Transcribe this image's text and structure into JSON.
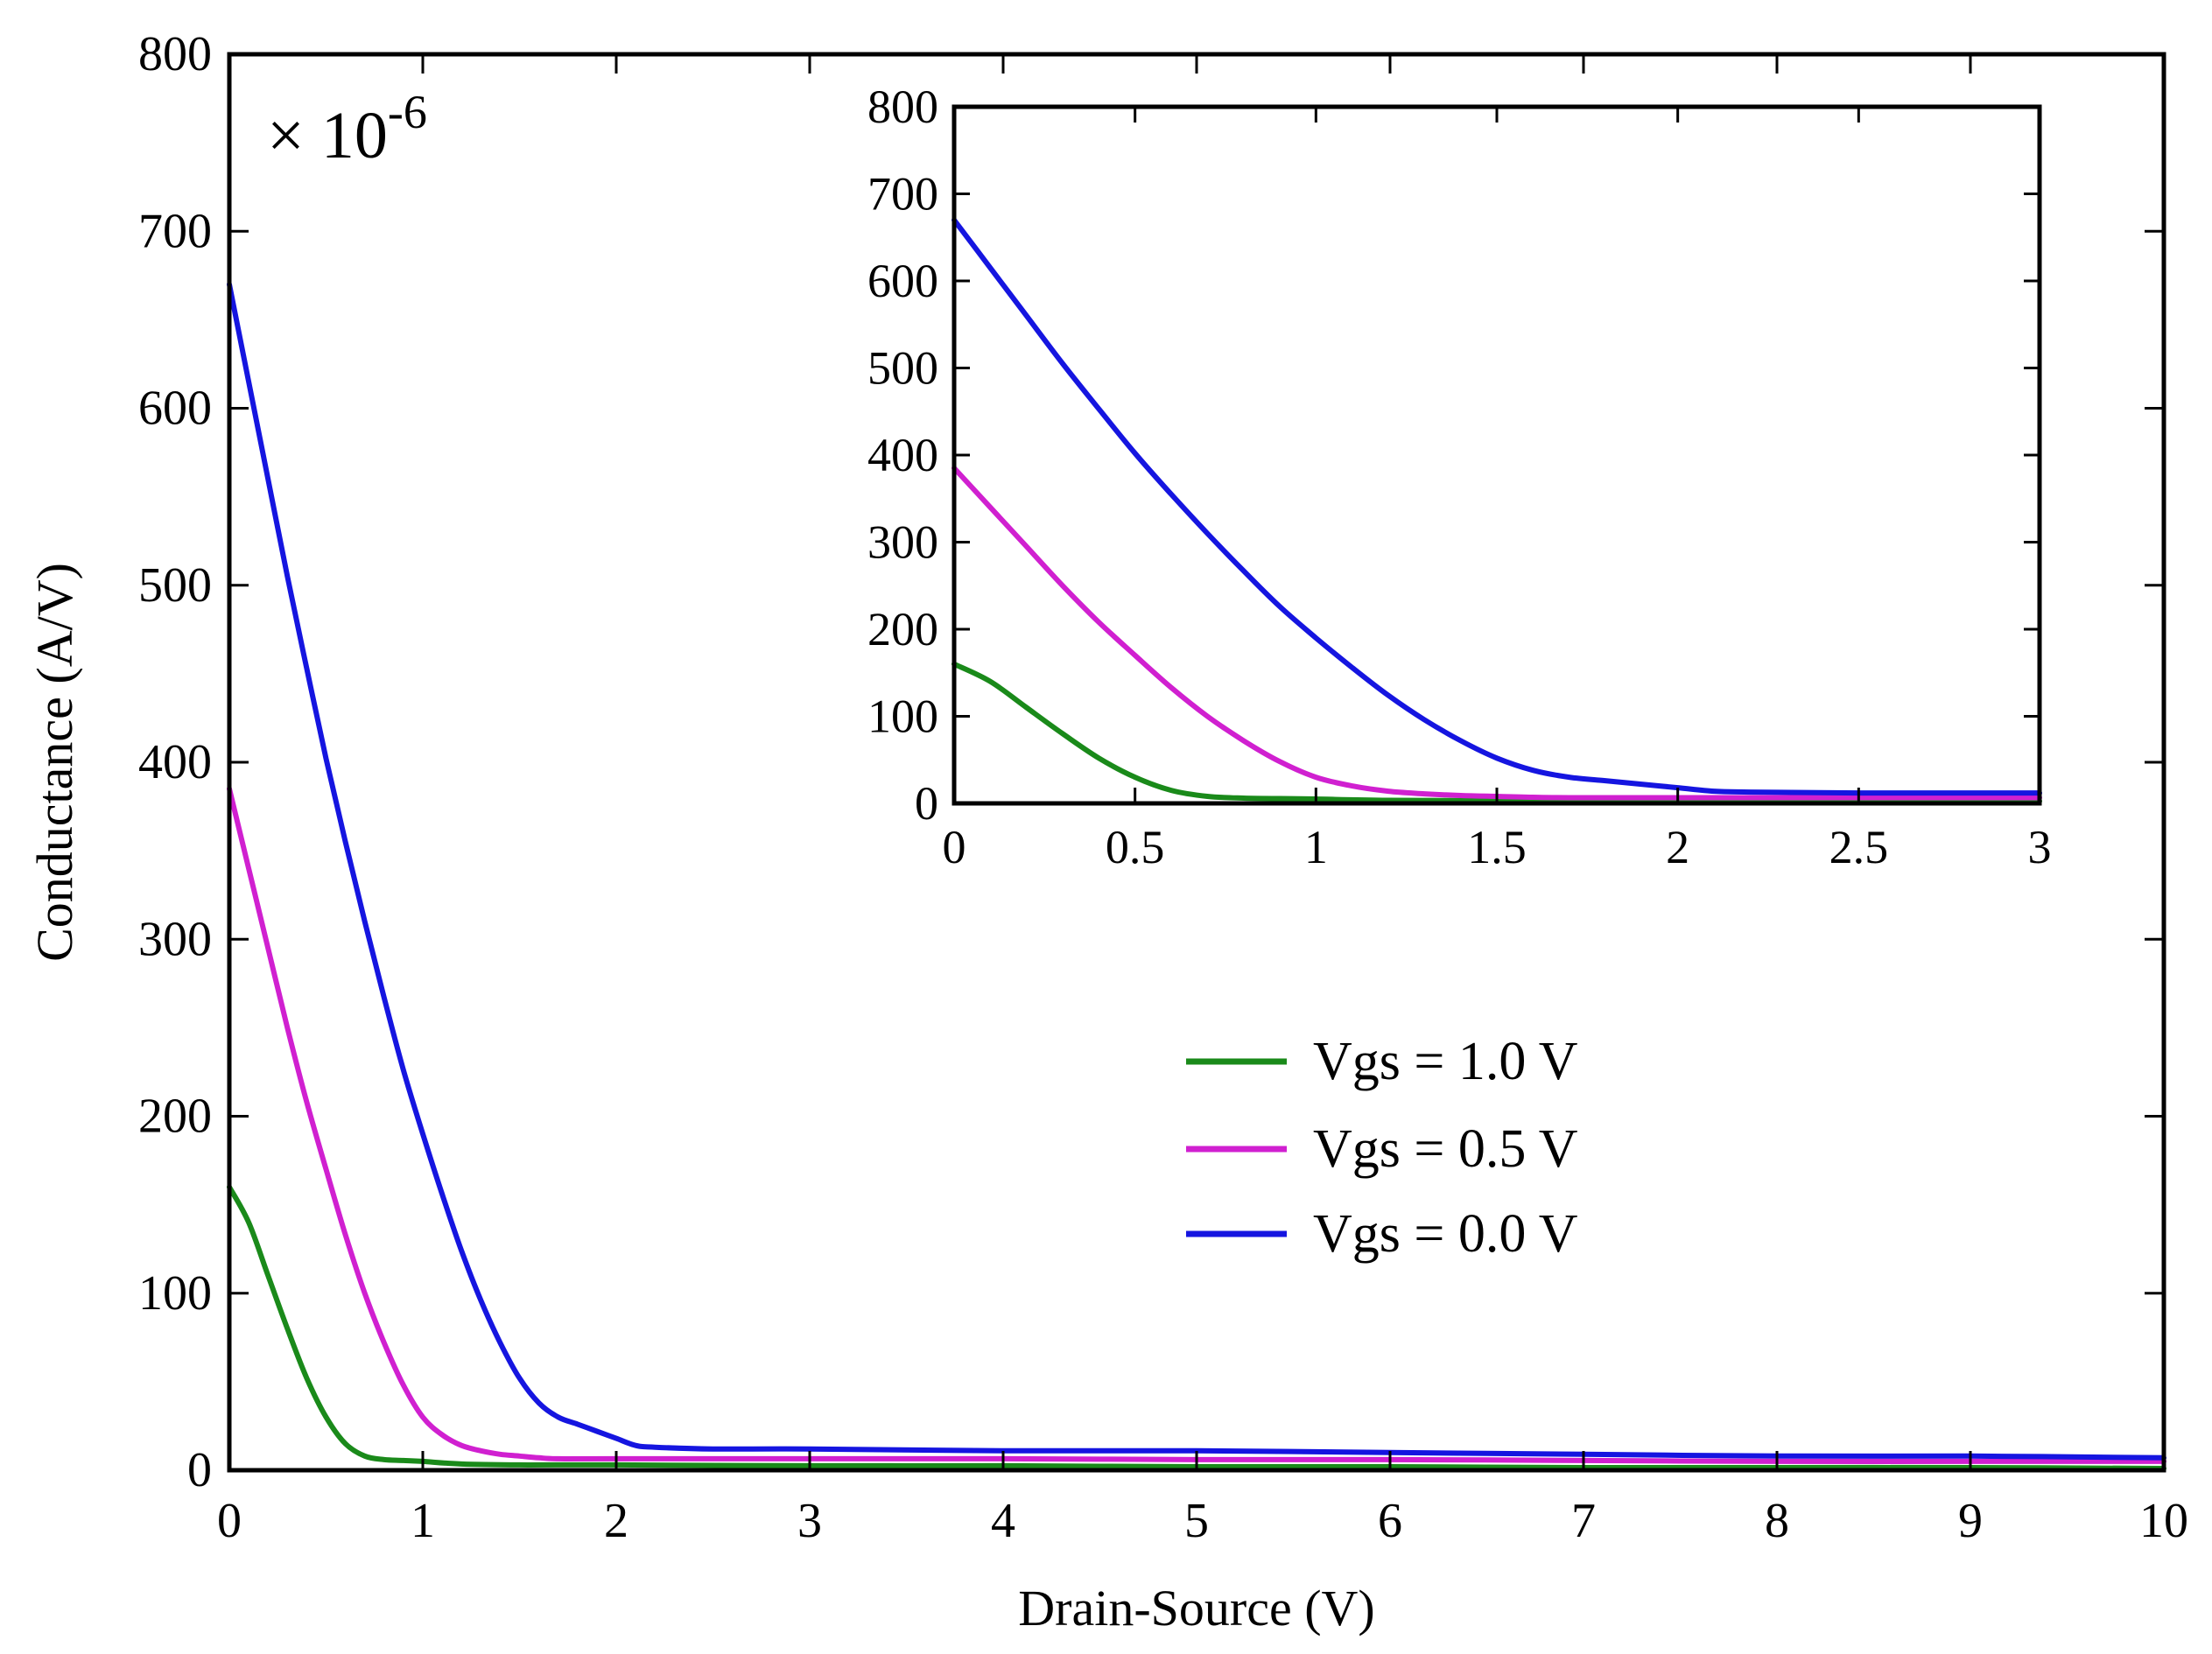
{
  "chart_data": [
    {
      "id": "main",
      "type": "line",
      "title": "",
      "xlabel": "Drain-Source (V)",
      "ylabel": "Conductance (A/V)",
      "multiplier_base": "× 10",
      "multiplier_exp": "-6",
      "xlim": [
        0,
        10
      ],
      "ylim": [
        0,
        800
      ],
      "xticks": [
        0,
        1,
        2,
        3,
        4,
        5,
        6,
        7,
        8,
        9,
        10
      ],
      "yticks": [
        0,
        100,
        200,
        300,
        400,
        500,
        600,
        700,
        800
      ],
      "grid": false,
      "legend_position": "center-right",
      "series": [
        {
          "name": "Vgs = 1.0 V",
          "color": "#1a8a1a",
          "x": [
            0,
            0.1,
            0.2,
            0.3,
            0.4,
            0.5,
            0.6,
            0.7,
            0.8,
            0.9,
            1.0,
            1.2,
            1.5,
            2,
            3,
            4,
            5,
            6,
            7,
            8,
            9,
            10
          ],
          "y": [
            160,
            140,
            110,
            80,
            52,
            30,
            15,
            8,
            6,
            5.5,
            5,
            3.5,
            3,
            3,
            2.5,
            2.5,
            2,
            2,
            1.5,
            1.5,
            1.5,
            1
          ]
        },
        {
          "name": "Vgs = 0.5 V",
          "color": "#d020d0",
          "x": [
            0,
            0.1,
            0.2,
            0.3,
            0.4,
            0.5,
            0.6,
            0.7,
            0.8,
            0.9,
            1.0,
            1.1,
            1.2,
            1.3,
            1.4,
            1.5,
            1.6,
            1.7,
            2,
            3,
            4,
            5,
            6,
            7,
            8,
            9,
            10
          ],
          "y": [
            385,
            340,
            295,
            250,
            208,
            170,
            133,
            100,
            72,
            48,
            30,
            20,
            14,
            11,
            9,
            8,
            7,
            6.5,
            6.5,
            6.5,
            6.5,
            6,
            6,
            5.5,
            5,
            5,
            5
          ]
        },
        {
          "name": "Vgs = 0.0 V",
          "color": "#1515e0",
          "x": [
            0,
            0.1,
            0.2,
            0.3,
            0.4,
            0.5,
            0.6,
            0.7,
            0.8,
            0.9,
            1.0,
            1.1,
            1.2,
            1.3,
            1.4,
            1.5,
            1.6,
            1.7,
            1.8,
            1.9,
            2.0,
            2.1,
            2.2,
            2.5,
            3,
            4,
            5,
            6,
            7,
            8,
            9,
            10
          ],
          "y": [
            670,
            615,
            560,
            505,
            453,
            402,
            355,
            310,
            267,
            226,
            190,
            156,
            124,
            96,
            72,
            52,
            38,
            30,
            26,
            22,
            18,
            14,
            13,
            12,
            12,
            11,
            11,
            10,
            9,
            8,
            8,
            7
          ]
        }
      ]
    },
    {
      "id": "inset",
      "type": "line",
      "title": "",
      "xlabel": "",
      "ylabel": "",
      "xlim": [
        0,
        3
      ],
      "ylim": [
        0,
        800
      ],
      "xticks": [
        0,
        0.5,
        1,
        1.5,
        2,
        2.5,
        3
      ],
      "yticks": [
        0,
        100,
        200,
        300,
        400,
        500,
        600,
        700,
        800
      ],
      "grid": false,
      "series": [
        {
          "name": "Vgs = 1.0 V",
          "color": "#1a8a1a",
          "x": [
            0,
            0.1,
            0.2,
            0.3,
            0.4,
            0.5,
            0.6,
            0.7,
            0.8,
            0.9,
            1.0,
            1.2,
            1.5,
            2,
            2.5,
            3
          ],
          "y": [
            160,
            140,
            110,
            80,
            52,
            30,
            15,
            8,
            6,
            5.5,
            5,
            3.5,
            3,
            3,
            3,
            2.5
          ]
        },
        {
          "name": "Vgs = 0.5 V",
          "color": "#d020d0",
          "x": [
            0,
            0.1,
            0.2,
            0.3,
            0.4,
            0.5,
            0.6,
            0.7,
            0.8,
            0.9,
            1.0,
            1.1,
            1.2,
            1.3,
            1.4,
            1.5,
            1.6,
            1.7,
            2,
            2.5,
            3
          ],
          "y": [
            385,
            340,
            295,
            250,
            208,
            170,
            133,
            100,
            72,
            48,
            30,
            20,
            14,
            11,
            9,
            8,
            7,
            6.5,
            6.5,
            6.5,
            6.5
          ]
        },
        {
          "name": "Vgs = 0.0 V",
          "color": "#1515e0",
          "x": [
            0,
            0.1,
            0.2,
            0.3,
            0.4,
            0.5,
            0.6,
            0.7,
            0.8,
            0.9,
            1.0,
            1.1,
            1.2,
            1.3,
            1.4,
            1.5,
            1.6,
            1.7,
            1.8,
            1.9,
            2.0,
            2.1,
            2.2,
            2.5,
            3
          ],
          "y": [
            670,
            615,
            560,
            505,
            453,
            402,
            355,
            310,
            267,
            226,
            190,
            156,
            124,
            96,
            72,
            52,
            38,
            30,
            26,
            22,
            18,
            14,
            13,
            12,
            12
          ]
        }
      ]
    }
  ]
}
